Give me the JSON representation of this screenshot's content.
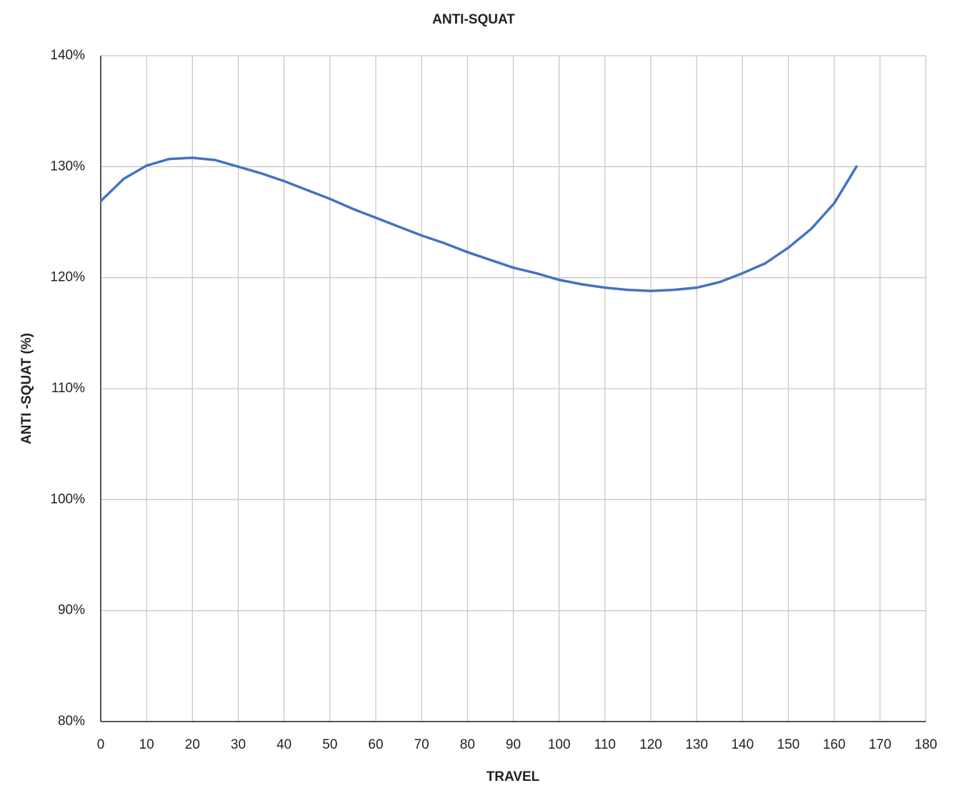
{
  "chart_data": {
    "type": "line",
    "title": "ANTI-SQUAT",
    "xlabel": "TRAVEL",
    "ylabel": "ANTI -SQUAT (%)",
    "x": [
      0,
      5,
      10,
      15,
      20,
      25,
      30,
      35,
      40,
      45,
      50,
      55,
      60,
      65,
      70,
      75,
      80,
      85,
      90,
      95,
      100,
      105,
      110,
      115,
      120,
      125,
      130,
      135,
      140,
      145,
      150,
      155,
      160,
      165
    ],
    "series": [
      {
        "color": "#4472c4",
        "values": [
          126.9,
          128.9,
          130.1,
          130.7,
          130.8,
          130.6,
          130.0,
          129.4,
          128.7,
          127.9,
          127.1,
          126.2,
          125.4,
          124.6,
          123.8,
          123.1,
          122.3,
          121.6,
          120.9,
          120.4,
          119.8,
          119.4,
          119.1,
          118.9,
          118.8,
          118.9,
          119.1,
          119.6,
          120.4,
          121.3,
          122.7,
          124.4,
          126.7,
          130.1
        ]
      }
    ],
    "xlim": [
      0,
      180
    ],
    "xticks": [
      0,
      10,
      20,
      30,
      40,
      50,
      60,
      70,
      80,
      90,
      100,
      110,
      120,
      130,
      140,
      150,
      160,
      170,
      180
    ],
    "ylim": [
      80,
      140
    ],
    "yticks": [
      {
        "value": 80,
        "label": "80%"
      },
      {
        "value": 90,
        "label": "90%"
      },
      {
        "value": 100,
        "label": "100%"
      },
      {
        "value": 110,
        "label": "110%"
      },
      {
        "value": 120,
        "label": "120%"
      },
      {
        "value": 130,
        "label": "130%"
      },
      {
        "value": 140,
        "label": "140%"
      }
    ],
    "grid": true
  }
}
